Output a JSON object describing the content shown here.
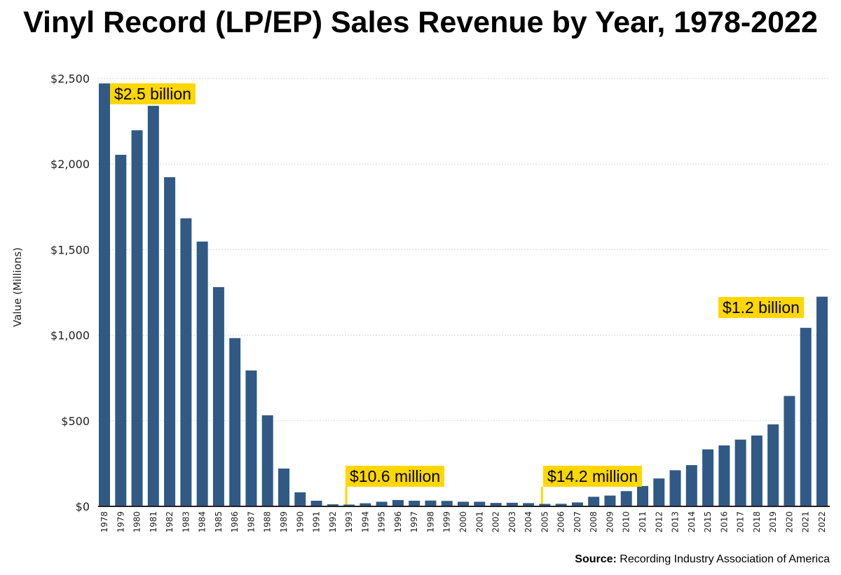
{
  "chart_data": {
    "type": "bar",
    "title": "Vinyl Record (LP/EP) Sales Revenue by Year, 1978-2022",
    "xlabel": "",
    "ylabel": "Value (Millions)",
    "ylim": [
      0,
      2500
    ],
    "yticks": [
      0,
      500,
      1000,
      1500,
      2000,
      2500
    ],
    "ytick_labels": [
      "$0",
      "$500",
      "$1,000",
      "$1,500",
      "$2,000",
      "$2,500"
    ],
    "grid": true,
    "bar_color": "#305A85",
    "annotation_color": "#FFD700",
    "categories": [
      "1978",
      "1979",
      "1980",
      "1981",
      "1982",
      "1983",
      "1984",
      "1985",
      "1986",
      "1987",
      "1988",
      "1989",
      "1990",
      "1991",
      "1992",
      "1993",
      "1994",
      "1995",
      "1996",
      "1997",
      "1998",
      "1999",
      "2000",
      "2001",
      "2002",
      "2003",
      "2004",
      "2005",
      "2006",
      "2007",
      "2008",
      "2009",
      "2010",
      "2011",
      "2012",
      "2013",
      "2014",
      "2015",
      "2016",
      "2017",
      "2018",
      "2019",
      "2020",
      "2021",
      "2022"
    ],
    "values": [
      2471,
      2054,
      2197,
      2340,
      1923,
      1683,
      1547,
      1281,
      983,
      794,
      532,
      221,
      82,
      33,
      12,
      10.6,
      18,
      27,
      37,
      33,
      34,
      32,
      27,
      27,
      20,
      21,
      19,
      14.2,
      15,
      23,
      56,
      63,
      89,
      119,
      163,
      211,
      241,
      333,
      356,
      390,
      414,
      479,
      645,
      1043,
      1225
    ],
    "annotations": [
      {
        "category": "1978",
        "text": "$2.5 billion"
      },
      {
        "category": "1993",
        "text": "$10.6 million"
      },
      {
        "category": "2005",
        "text": "$14.2 million"
      },
      {
        "category": "2022",
        "text": "$1.2 billion"
      }
    ]
  },
  "source": {
    "label": "Source:",
    "text": "Recording Industry Association of America"
  }
}
